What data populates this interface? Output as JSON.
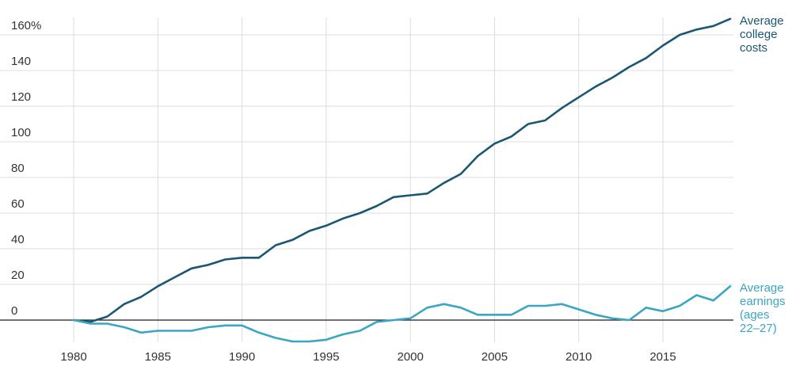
{
  "chart_data": {
    "type": "line",
    "title": "",
    "xlabel": "",
    "ylabel": "",
    "xlim": [
      1980,
      2019
    ],
    "ylim": [
      -15,
      170
    ],
    "grid": true,
    "x_ticks": [
      "1980",
      "1985",
      "1990",
      "1995",
      "2000",
      "2005",
      "2010",
      "2015"
    ],
    "y_ticks": [
      "160%",
      "140",
      "120",
      "100",
      "80",
      "60",
      "40",
      "20",
      "0"
    ],
    "y_tick_values": [
      160,
      140,
      120,
      100,
      80,
      60,
      40,
      20,
      0
    ],
    "x_tick_values": [
      1980,
      1985,
      1990,
      1995,
      2000,
      2005,
      2010,
      2015
    ],
    "x": [
      1980,
      1981,
      1982,
      1983,
      1984,
      1985,
      1986,
      1987,
      1988,
      1989,
      1990,
      1991,
      1992,
      1993,
      1994,
      1995,
      1996,
      1997,
      1998,
      1999,
      2000,
      2001,
      2002,
      2003,
      2004,
      2005,
      2006,
      2007,
      2008,
      2009,
      2010,
      2011,
      2012,
      2013,
      2014,
      2015,
      2016,
      2017,
      2018,
      2019
    ],
    "series": [
      {
        "name_lines": [
          "Average",
          "college",
          "costs"
        ],
        "color": "#1b5673",
        "values": [
          0,
          -1,
          2,
          9,
          13,
          19,
          24,
          29,
          31,
          34,
          35,
          35,
          42,
          45,
          50,
          53,
          57,
          60,
          64,
          69,
          70,
          71,
          77,
          82,
          92,
          99,
          103,
          110,
          112,
          119,
          125,
          131,
          136,
          142,
          147,
          154,
          160,
          163,
          165,
          169
        ]
      },
      {
        "name_lines": [
          "Average",
          "earnings",
          "(ages",
          "22–27)"
        ],
        "color": "#3aa6c4",
        "values": [
          0,
          -2,
          -2,
          -4,
          -7,
          -6,
          -6,
          -6,
          -4,
          -3,
          -3,
          -7,
          -10,
          -12,
          -12,
          -11,
          -8,
          -6,
          -1,
          0,
          1,
          7,
          9,
          7,
          3,
          3,
          3,
          8,
          8,
          9,
          6,
          3,
          1,
          0,
          7,
          5,
          8,
          14,
          11,
          19
        ]
      }
    ]
  }
}
